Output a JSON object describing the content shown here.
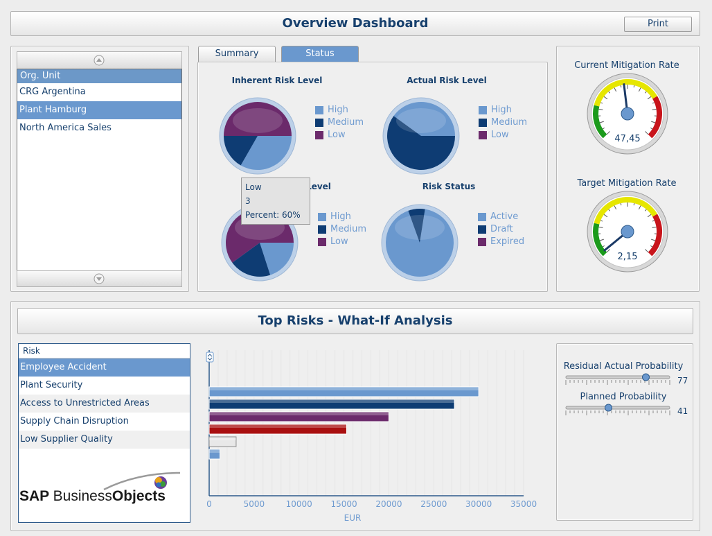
{
  "header": {
    "title": "Overview Dashboard",
    "print_label": "Print"
  },
  "org_list": {
    "header": "Org. Unit",
    "items": [
      "CRG Argentina",
      "Plant Hamburg",
      "North America Sales"
    ],
    "selected_index": 1
  },
  "tabs": [
    {
      "label": "Summary",
      "active": false
    },
    {
      "label": "Status",
      "active": true
    }
  ],
  "pies": [
    {
      "title": "Inherent Risk Level",
      "legend": [
        "High",
        "Medium",
        "Low"
      ],
      "values": [
        0.333,
        0.167,
        0.5
      ]
    },
    {
      "title": "Actual Risk Level",
      "legend": [
        "High",
        "Medium",
        "Low"
      ],
      "values": [
        0.4,
        0.6,
        0.0
      ]
    },
    {
      "title": "Level",
      "legend": [
        "High",
        "Medium",
        "Low"
      ],
      "values": [
        0.2,
        0.2,
        0.6
      ]
    },
    {
      "title": "Risk Status",
      "legend": [
        "Active",
        "Draft",
        "Expired"
      ],
      "values": [
        0.92,
        0.08,
        0.0
      ]
    }
  ],
  "colors": {
    "high": "#6a98ce",
    "medium": "#0e3c73",
    "low": "#6b2a6b",
    "red": "#a90f10"
  },
  "tooltip": {
    "line1": "Low",
    "line2": "3",
    "line3": "Percent: 60%"
  },
  "gauges": [
    {
      "title": "Current Mitigation Rate",
      "value_label": "47,45",
      "value": 47.45
    },
    {
      "title": "Target Mitigation Rate",
      "value_label": "2,15",
      "value": 2.15
    }
  ],
  "bottom": {
    "title": "Top Risks - What-If Analysis"
  },
  "risk_table": {
    "header": "Risk",
    "rows": [
      "Employee Accident",
      "Plant Security",
      "Access to Unrestricted Areas",
      "Supply Chain Disruption",
      "Low Supplier Quality"
    ],
    "selected_index": 0
  },
  "logo": {
    "text_a": "SAP ",
    "text_b": "Business",
    "text_c": "Objects"
  },
  "sliders": [
    {
      "label": "Residual Actual Probability",
      "value": 77
    },
    {
      "label": "Planned Probability",
      "value": 41
    }
  ],
  "chart_data": {
    "type": "bar",
    "orientation": "horizontal",
    "xlabel": "EUR",
    "xlim": [
      0,
      35000
    ],
    "xticks": [
      "0",
      "5000",
      "10000",
      "15000",
      "20000",
      "25000",
      "30000",
      "35000"
    ],
    "bars": [
      {
        "value": 30000,
        "color": "#6a98ce"
      },
      {
        "value": 27300,
        "color": "#0e3c73"
      },
      {
        "value": 20000,
        "color": "#6b2a6b"
      },
      {
        "value": 15300,
        "color": "#a90f10"
      },
      {
        "value": 3000,
        "color": "#e8e8e8"
      },
      {
        "value": 1200,
        "color": "#6a98ce"
      }
    ],
    "grid": true
  }
}
